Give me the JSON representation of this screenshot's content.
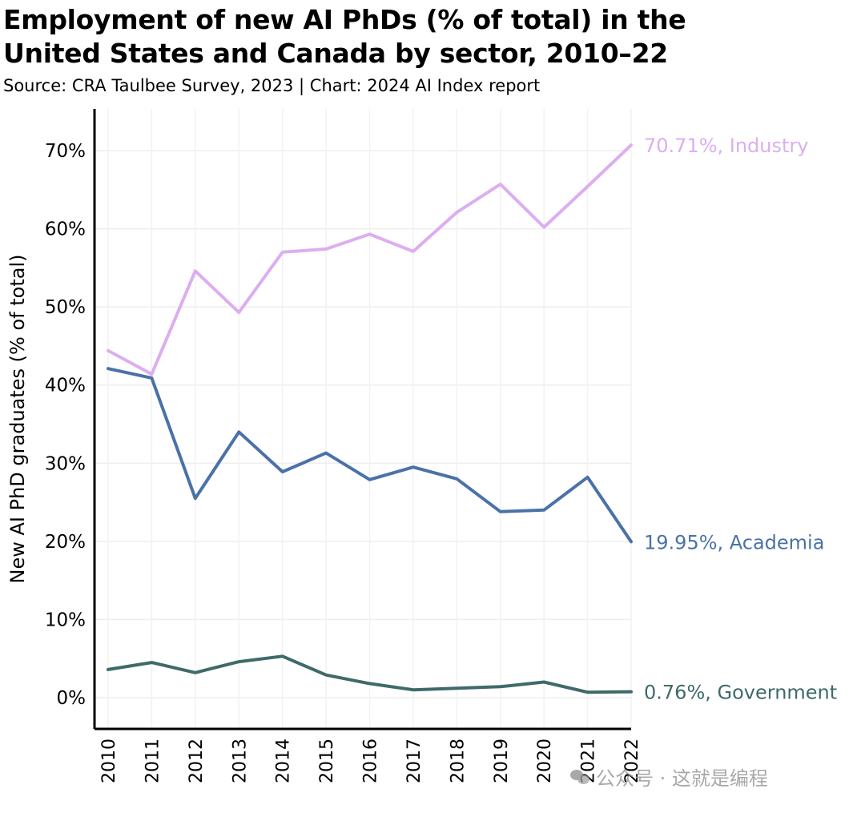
{
  "header": {
    "title_line1": "Employment of new AI PhDs (% of total) in the",
    "title_line2": "United States and Canada by sector, 2010–22",
    "subtitle": "Source: CRA Taulbee Survey, 2023 | Chart: 2024 AI Index report"
  },
  "watermark": {
    "text": "公众号 · 这就是编程",
    "icon": "wechat-icon"
  },
  "chart_data": {
    "type": "line",
    "x": [
      2010,
      2011,
      2012,
      2013,
      2014,
      2015,
      2016,
      2017,
      2018,
      2019,
      2020,
      2021,
      2022
    ],
    "xlabel": "",
    "ylabel": "New AI PhD graduates (% of total)",
    "ylim": [
      -4,
      75
    ],
    "yticks": [
      0,
      10,
      20,
      30,
      40,
      50,
      60,
      70
    ],
    "ytick_labels": [
      "0%",
      "10%",
      "20%",
      "30%",
      "40%",
      "50%",
      "60%",
      "70%"
    ],
    "grid": true,
    "legend": "none (direct labels at line ends)",
    "series": [
      {
        "name": "Industry",
        "color": "#dcaef0",
        "end_label": "70.71%, Industry",
        "values": [
          44.4,
          41.4,
          54.6,
          49.3,
          57.0,
          57.4,
          59.3,
          57.1,
          62.1,
          65.7,
          60.2,
          65.4,
          70.71
        ]
      },
      {
        "name": "Academia",
        "color": "#4a72a8",
        "end_label": "19.95%, Academia",
        "values": [
          42.1,
          40.9,
          25.5,
          34.0,
          28.9,
          31.3,
          27.9,
          29.5,
          28.0,
          23.8,
          24.0,
          28.2,
          19.95
        ]
      },
      {
        "name": "Government",
        "color": "#3f6a6a",
        "end_label": "0.76%, Government",
        "values": [
          3.6,
          4.5,
          3.2,
          4.6,
          5.3,
          2.9,
          1.8,
          1.0,
          1.2,
          1.4,
          2.0,
          0.7,
          0.76
        ]
      }
    ]
  }
}
